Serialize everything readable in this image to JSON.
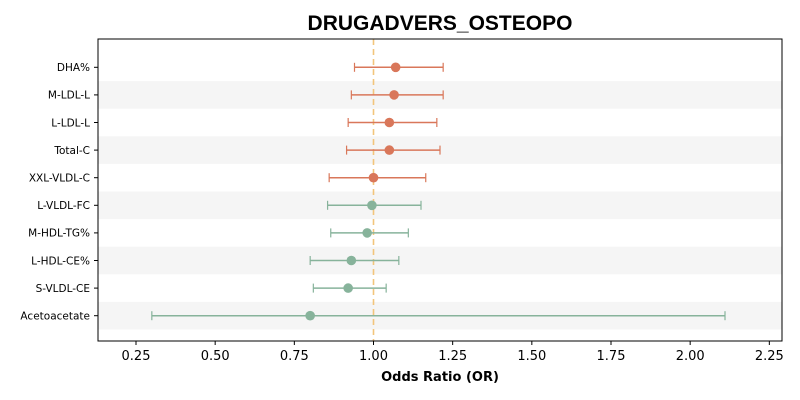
{
  "chart_data": {
    "type": "forest",
    "title": "DRUGADVERS_OSTEOPO",
    "xlabel": "Odds Ratio (OR)",
    "ylabel": "",
    "xlim": [
      0.13,
      2.29
    ],
    "xticks": [
      0.25,
      0.5,
      0.75,
      1.0,
      1.25,
      1.5,
      1.75,
      2.0,
      2.25
    ],
    "xtick_labels": [
      "0.25",
      "0.50",
      "0.75",
      "1.00",
      "1.25",
      "1.50",
      "1.75",
      "2.00",
      "2.25"
    ],
    "reference_line": 1.0,
    "grid": false,
    "alternating_row_bands": true,
    "colors": {
      "above_one": "#d9775a",
      "below_one": "#87b39b",
      "reference_line": "#f2c57c",
      "band": "#f5f5f5"
    },
    "items": [
      {
        "label": "DHA%",
        "or": 1.07,
        "lower": 0.94,
        "upper": 1.22
      },
      {
        "label": "M-LDL-L",
        "or": 1.065,
        "lower": 0.93,
        "upper": 1.22
      },
      {
        "label": "L-LDL-L",
        "or": 1.05,
        "lower": 0.92,
        "upper": 1.2
      },
      {
        "label": "Total-C",
        "or": 1.05,
        "lower": 0.915,
        "upper": 1.21
      },
      {
        "label": "XXL-VLDL-C",
        "or": 1.0,
        "lower": 0.86,
        "upper": 1.165
      },
      {
        "label": "L-VLDL-FC",
        "or": 0.995,
        "lower": 0.855,
        "upper": 1.15
      },
      {
        "label": "M-HDL-TG%",
        "or": 0.98,
        "lower": 0.865,
        "upper": 1.11
      },
      {
        "label": "L-HDL-CE%",
        "or": 0.93,
        "lower": 0.8,
        "upper": 1.08
      },
      {
        "label": "S-VLDL-CE",
        "or": 0.92,
        "lower": 0.81,
        "upper": 1.04
      },
      {
        "label": "Acetoacetate",
        "or": 0.8,
        "lower": 0.3,
        "upper": 2.11
      }
    ]
  }
}
